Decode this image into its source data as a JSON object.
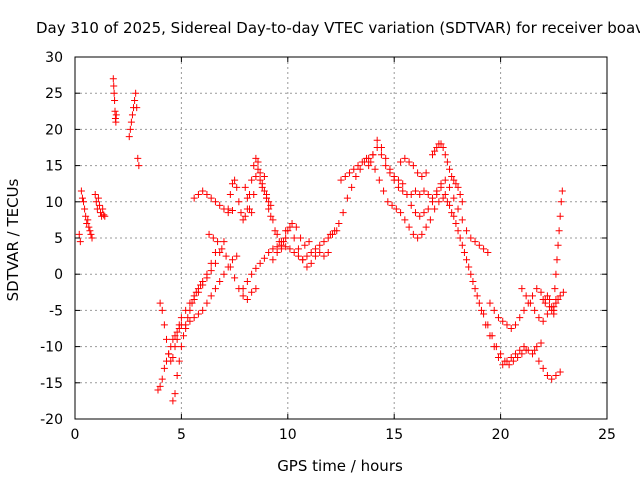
{
  "chart_data": {
    "type": "scatter",
    "title": "Day 310 of 2025, Sidereal Day-to-day VTEC variation (SDTVAR) for receiver boav",
    "xlabel": "GPS time / hours",
    "ylabel": "SDTVAR / TECUs",
    "xlim": [
      0,
      25
    ],
    "ylim": [
      -20,
      30
    ],
    "xticks": [
      "0",
      "5",
      "10",
      "15",
      "20",
      "25"
    ],
    "yticks": [
      "30",
      "25",
      "20",
      "15",
      "10",
      "5",
      "0",
      "-5",
      "-10",
      "-15",
      "-20"
    ],
    "grid": true,
    "marker": "+",
    "color": "#ff0000",
    "series": [
      {
        "name": "seg-early-1",
        "x": [
          0.2,
          0.25,
          0.3,
          0.35,
          0.4,
          0.45,
          0.5,
          0.55,
          0.6,
          0.65,
          0.7,
          0.75,
          0.8
        ],
        "y": [
          5.5,
          4.5,
          11.5,
          10.5,
          10.0,
          9.0,
          8.0,
          7.0,
          7.5,
          6.5,
          6.0,
          5.5,
          5.0
        ]
      },
      {
        "name": "seg-early-2",
        "x": [
          0.95,
          1.0,
          1.05,
          1.1,
          1.15,
          1.2,
          1.25,
          1.3,
          1.35,
          1.4
        ],
        "y": [
          11.0,
          10.0,
          9.0,
          10.5,
          9.5,
          8.5,
          8.0,
          9.0,
          8.2,
          8.0
        ]
      },
      {
        "name": "seg-early-3",
        "x": [
          1.8,
          1.82,
          1.84,
          1.86,
          1.88,
          1.9,
          1.92,
          1.94
        ],
        "y": [
          27.0,
          26.0,
          25.0,
          24.0,
          22.5,
          21.5,
          21.0,
          22.0
        ]
      },
      {
        "name": "seg-early-4",
        "x": [
          2.55,
          2.6,
          2.65,
          2.7,
          2.75,
          2.8,
          2.85,
          2.9,
          2.95,
          3.0
        ],
        "y": [
          19.0,
          20.0,
          21.0,
          22.0,
          23.0,
          24.0,
          25.0,
          23.0,
          16.0,
          15.0
        ]
      },
      {
        "name": "seg-a",
        "x": [
          3.9,
          4.0,
          4.1,
          4.2,
          4.3,
          4.4,
          4.5,
          4.6,
          4.7,
          4.8,
          4.9,
          5.0,
          5.2,
          5.4,
          5.6,
          5.8,
          6.0,
          6.2,
          6.4,
          6.6,
          6.8,
          7.0,
          7.2,
          7.4,
          7.6
        ],
        "y": [
          -16.0,
          -15.5,
          -14.5,
          -13.0,
          -12.0,
          -11.0,
          -10.0,
          -9.0,
          -8.5,
          -8.0,
          -7.5,
          -7.0,
          -7.5,
          -6.5,
          -6.0,
          -5.5,
          -5.0,
          -4.0,
          -3.0,
          -2.0,
          -1.0,
          0.0,
          1.0,
          2.0,
          2.5
        ]
      },
      {
        "name": "seg-b",
        "x": [
          4.6,
          4.7,
          4.8,
          4.9,
          5.0,
          5.1,
          5.2,
          5.3,
          5.4,
          5.5,
          5.6,
          5.7,
          5.8,
          5.9,
          6.0,
          6.2,
          6.4,
          6.6
        ],
        "y": [
          -17.5,
          -16.5,
          -14.0,
          -12.0,
          -10.0,
          -8.5,
          -7.0,
          -6.0,
          -5.0,
          -4.0,
          -3.0,
          -2.5,
          -2.0,
          -1.5,
          -1.0,
          0.0,
          1.5,
          3.0
        ]
      },
      {
        "name": "seg-c",
        "x": [
          4.0,
          4.1,
          4.2,
          4.3,
          4.4,
          4.5,
          4.6,
          4.7,
          4.8,
          4.9,
          5.0,
          5.2,
          5.4,
          5.6,
          5.8,
          6.0,
          6.2,
          6.4,
          6.6,
          6.8,
          7.0
        ],
        "y": [
          -4.0,
          -5.0,
          -7.0,
          -9.0,
          -11.0,
          -12.0,
          -11.5,
          -10.0,
          -9.0,
          -7.0,
          -6.0,
          -5.0,
          -4.0,
          -3.5,
          -2.5,
          -1.5,
          -0.5,
          0.5,
          1.5,
          3.0,
          4.5
        ]
      },
      {
        "name": "seg-d",
        "x": [
          5.6,
          5.8,
          6.0,
          6.2,
          6.4,
          6.6,
          6.8,
          7.0,
          7.2,
          7.4
        ],
        "y": [
          10.5,
          11.0,
          11.5,
          11.0,
          10.5,
          10.0,
          9.5,
          9.0,
          8.5,
          8.8
        ]
      },
      {
        "name": "seg-e",
        "x": [
          6.3,
          6.5,
          6.7,
          6.9,
          7.1,
          7.3,
          7.5,
          7.7,
          7.9,
          8.1,
          8.3,
          8.5
        ],
        "y": [
          5.5,
          5.0,
          4.5,
          3.5,
          2.5,
          1.0,
          -0.5,
          -2.0,
          -3.0,
          -3.5,
          -2.5,
          -2.0
        ]
      },
      {
        "name": "seg-f",
        "x": [
          7.2,
          7.3,
          7.4,
          7.5,
          7.6,
          7.7,
          7.8,
          7.9,
          8.0,
          8.1,
          8.2,
          8.3,
          8.4,
          8.5,
          8.6,
          8.7,
          8.8,
          8.9,
          9.0
        ],
        "y": [
          9.0,
          11.0,
          12.5,
          13.0,
          12.0,
          10.0,
          8.5,
          7.5,
          8.0,
          9.0,
          11.0,
          13.0,
          15.0,
          16.0,
          14.5,
          13.0,
          12.0,
          13.5,
          11.0
        ]
      },
      {
        "name": "seg-g",
        "x": [
          8.0,
          8.1,
          8.2,
          8.3,
          8.4,
          8.5,
          8.6,
          8.7,
          8.8,
          8.9,
          9.0,
          9.1,
          9.2
        ],
        "y": [
          12.0,
          10.5,
          9.0,
          8.5,
          11.0,
          13.5,
          15.5,
          14.0,
          12.5,
          11.5,
          10.5,
          10.0,
          9.5
        ]
      },
      {
        "name": "seg-h",
        "x": [
          7.9,
          8.1,
          8.3,
          8.5,
          8.7,
          8.9,
          9.1,
          9.3,
          9.5,
          9.7,
          9.9,
          10.1,
          10.3,
          10.5,
          10.7,
          10.9,
          11.1,
          11.3,
          11.5,
          11.7,
          11.9,
          12.1,
          12.3
        ],
        "y": [
          -2.0,
          -1.0,
          0.0,
          0.8,
          1.5,
          2.2,
          3.0,
          3.5,
          3.8,
          4.0,
          3.8,
          3.5,
          3.0,
          2.5,
          2.0,
          2.5,
          3.0,
          3.5,
          4.0,
          4.5,
          5.0,
          5.5,
          6.0
        ]
      },
      {
        "name": "seg-i",
        "x": [
          9.3,
          9.5,
          9.7,
          9.9,
          10.1,
          10.3,
          10.5,
          10.7,
          10.9,
          11.1,
          11.3,
          11.5,
          11.7,
          11.9
        ],
        "y": [
          2.0,
          3.0,
          4.5,
          6.0,
          6.5,
          5.0,
          3.5,
          2.0,
          1.0,
          1.5,
          2.5,
          3.0,
          2.5,
          3.0
        ]
      },
      {
        "name": "seg-j",
        "x": [
          9.0,
          9.1,
          9.2,
          9.3,
          9.4,
          9.5,
          9.6,
          9.7,
          9.8,
          9.9,
          10.0,
          10.2,
          10.4,
          10.6,
          10.8,
          11.0
        ],
        "y": [
          10.5,
          9.0,
          8.0,
          7.5,
          6.0,
          5.5,
          4.5,
          3.5,
          4.5,
          5.0,
          6.0,
          7.0,
          6.5,
          5.0,
          4.0,
          4.5
        ]
      },
      {
        "name": "seg-k",
        "x": [
          12.0,
          12.2,
          12.4,
          12.6,
          12.8,
          13.0,
          13.2,
          13.4,
          13.6,
          13.8,
          14.0,
          14.2,
          14.4,
          14.6,
          14.8,
          15.0,
          15.2,
          15.4,
          15.6,
          15.8,
          16.0,
          16.2,
          16.4,
          16.6,
          16.8,
          17.0,
          17.2,
          17.4,
          17.6,
          17.8,
          18.0,
          18.2,
          18.4,
          18.6,
          18.8,
          19.0,
          19.2,
          19.4,
          19.6,
          19.8,
          20.0,
          20.2,
          20.4,
          20.6,
          20.8,
          21.0,
          21.2
        ],
        "y": [
          5.5,
          6.0,
          7.0,
          8.5,
          10.5,
          12.0,
          13.5,
          14.5,
          15.5,
          16.0,
          16.5,
          17.5,
          16.5,
          15.0,
          14.0,
          13.0,
          12.0,
          11.5,
          11.0,
          11.0,
          11.5,
          11.0,
          11.5,
          11.0,
          10.5,
          11.5,
          12.0,
          11.0,
          9.5,
          8.0,
          6.0,
          4.0,
          2.0,
          0.0,
          -2.0,
          -4.0,
          -5.5,
          -7.0,
          -8.5,
          -10.0,
          -11.0,
          -12.0,
          -12.5,
          -12.0,
          -11.5,
          -11.0,
          -10.5
        ]
      },
      {
        "name": "seg-l",
        "x": [
          12.5,
          12.7,
          12.9,
          13.1,
          13.3,
          13.5,
          13.7,
          13.9,
          14.1,
          14.3,
          14.5,
          14.7,
          14.9,
          15.1,
          15.3,
          15.5,
          15.7,
          15.9,
          16.1,
          16.3,
          16.5,
          16.7,
          16.9,
          17.1,
          17.3,
          17.5,
          17.7,
          17.9,
          18.1,
          18.3,
          18.5,
          18.7,
          18.9,
          19.1,
          19.3,
          19.5,
          19.7,
          19.9,
          20.1,
          20.3,
          20.5,
          20.7,
          20.9,
          21.1,
          21.3,
          21.5,
          21.7,
          21.9
        ],
        "y": [
          13.0,
          13.5,
          14.0,
          14.5,
          15.0,
          15.5,
          16.0,
          15.5,
          14.5,
          13.0,
          11.5,
          10.0,
          9.5,
          9.0,
          8.5,
          7.5,
          6.5,
          5.5,
          5.0,
          5.5,
          6.5,
          7.5,
          9.0,
          10.0,
          10.5,
          10.0,
          8.5,
          7.0,
          5.0,
          3.0,
          1.0,
          -1.0,
          -3.0,
          -5.0,
          -7.0,
          -8.5,
          -10.0,
          -11.5,
          -12.5,
          -12.0,
          -11.5,
          -11.0,
          -10.5,
          -10.0,
          -10.5,
          -11.0,
          -10.0,
          -9.5
        ]
      },
      {
        "name": "seg-m",
        "x": [
          13.8,
          14.0,
          14.2,
          14.4,
          14.6,
          14.8,
          15.0,
          15.2,
          15.4,
          15.6,
          15.8,
          16.0,
          16.2,
          16.4,
          16.6,
          16.8,
          17.0,
          17.2,
          17.4,
          17.6,
          17.8,
          18.0,
          18.2,
          18.4,
          18.6,
          18.8,
          19.0,
          19.2,
          19.4
        ],
        "y": [
          15.0,
          16.5,
          18.5,
          17.5,
          16.0,
          14.5,
          13.5,
          13.0,
          12.5,
          11.0,
          9.5,
          8.5,
          8.0,
          8.5,
          9.0,
          10.0,
          11.0,
          12.5,
          13.0,
          12.0,
          10.5,
          9.0,
          7.5,
          6.0,
          5.0,
          4.5,
          4.0,
          3.5,
          3.0
        ]
      },
      {
        "name": "seg-n",
        "x": [
          16.8,
          16.9,
          17.0,
          17.1,
          17.2,
          17.3,
          17.4,
          17.5,
          17.6,
          17.7,
          17.8,
          17.9,
          18.0,
          18.1,
          18.2
        ],
        "y": [
          16.5,
          17.0,
          17.5,
          18.0,
          18.0,
          17.5,
          16.5,
          15.5,
          14.5,
          13.5,
          13.0,
          12.5,
          12.0,
          11.0,
          10.0
        ]
      },
      {
        "name": "seg-o",
        "x": [
          15.3,
          15.5,
          15.7,
          15.9,
          16.1,
          16.3,
          16.5
        ],
        "y": [
          15.5,
          16.0,
          15.5,
          15.0,
          14.0,
          13.5,
          14.0
        ]
      },
      {
        "name": "seg-p",
        "x": [
          19.5,
          19.7,
          19.9,
          20.1,
          20.3,
          20.5,
          20.7,
          20.9,
          21.1,
          21.3,
          21.5,
          21.7,
          21.9,
          22.1,
          22.3,
          22.5
        ],
        "y": [
          -4.0,
          -5.0,
          -6.0,
          -6.5,
          -7.0,
          -7.5,
          -7.0,
          -6.0,
          -5.0,
          -4.0,
          -3.0,
          -2.0,
          -2.5,
          -3.5,
          -4.5,
          -5.5
        ]
      },
      {
        "name": "seg-q",
        "x": [
          21.0,
          21.2,
          21.4,
          21.6,
          21.8,
          22.0,
          22.2,
          22.4,
          22.6,
          22.8
        ],
        "y": [
          -2.0,
          -3.0,
          -4.0,
          -5.0,
          -6.0,
          -6.5,
          -5.5,
          -4.5,
          -3.5,
          -3.0
        ]
      },
      {
        "name": "seg-r",
        "x": [
          21.6,
          21.8,
          22.0,
          22.2,
          22.4,
          22.6,
          22.8
        ],
        "y": [
          -10.5,
          -12.0,
          -13.0,
          -14.0,
          -14.5,
          -14.0,
          -13.5
        ]
      },
      {
        "name": "seg-s",
        "x": [
          22.0,
          22.1,
          22.2,
          22.3,
          22.4,
          22.5,
          22.6,
          22.7
        ],
        "y": [
          -3.5,
          -4.0,
          -3.0,
          -3.5,
          -5.0,
          -4.5,
          -4.0,
          -3.5
        ]
      },
      {
        "name": "seg-t",
        "x": [
          22.5,
          22.55,
          22.6,
          22.65,
          22.7,
          22.75,
          22.8,
          22.85,
          22.9,
          22.95
        ],
        "y": [
          -5.0,
          -2.0,
          0.0,
          2.0,
          4.0,
          6.0,
          8.0,
          10.0,
          11.5,
          -2.5
        ]
      }
    ]
  }
}
